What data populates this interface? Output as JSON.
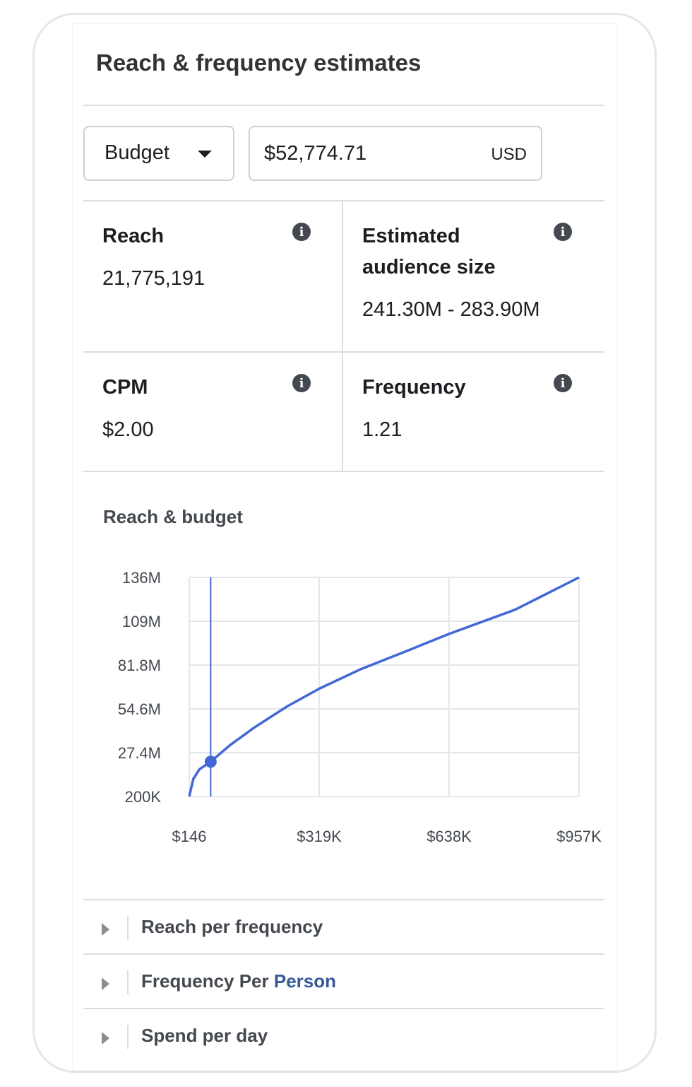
{
  "panel": {
    "title": "Reach & frequency estimates"
  },
  "budget_control": {
    "mode_label": "Budget",
    "amount_value": "$52,774.71",
    "currency": "USD"
  },
  "metrics": {
    "reach": {
      "label": "Reach",
      "value": "21,775,191"
    },
    "audience": {
      "label_line1": "Estimated",
      "label_line2": "audience size",
      "value": "241.30M - 283.90M"
    },
    "cpm": {
      "label": "CPM",
      "value": "$2.00"
    },
    "frequency": {
      "label": "Frequency",
      "value": "1.21"
    }
  },
  "chart_title": "Reach & budget",
  "chart_data": {
    "type": "line",
    "title": "Reach & budget",
    "xlabel": "",
    "ylabel": "",
    "x_tick_labels": [
      "$146",
      "$319K",
      "$638K",
      "$957K"
    ],
    "y_tick_labels": [
      "200K",
      "27.4M",
      "54.6M",
      "81.8M",
      "109M",
      "136M"
    ],
    "xlim": [
      146,
      957000
    ],
    "ylim": [
      200000,
      136000000
    ],
    "grid": true,
    "series": [
      {
        "color": "#4267d6",
        "x": [
          146,
          10000,
          25000,
          52775,
          100000,
          160000,
          240000,
          319000,
          420000,
          530000,
          638000,
          800000,
          957000
        ],
        "y": [
          200000,
          11000000,
          17000000,
          21775191,
          32000000,
          43000000,
          56000000,
          67000000,
          79000000,
          90000000,
          101000000,
          116000000,
          136000000
        ]
      }
    ],
    "marker": {
      "x": 52775,
      "y": 21775191
    }
  },
  "accordion": [
    {
      "label": "Reach per frequency"
    },
    {
      "label_part1": "Frequency Per ",
      "label_part2": "Person"
    },
    {
      "label": "Spend per day"
    }
  ],
  "colors": {
    "accent": "#4267d6",
    "link": "#385898",
    "border": "#dadde1"
  }
}
